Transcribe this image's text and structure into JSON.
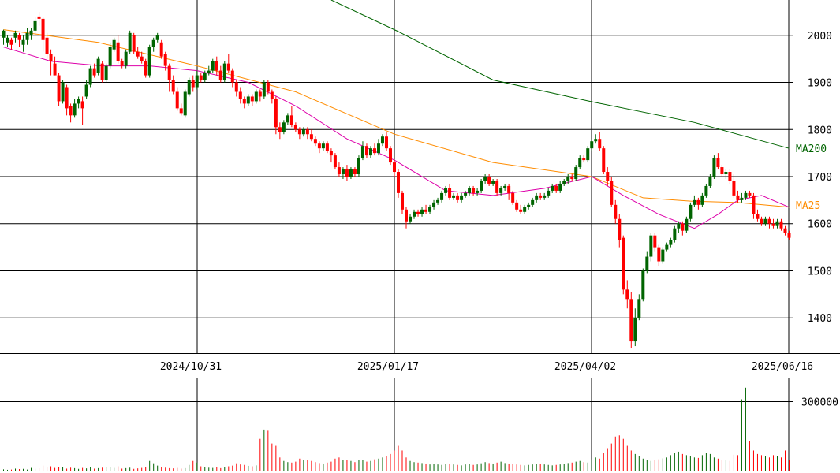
{
  "chart_data": {
    "type": "candlestick",
    "price_axis": {
      "ylim": [
        1325,
        2075
      ],
      "ticks": [
        1400,
        1500,
        1600,
        1700,
        1800,
        1900,
        2000
      ],
      "tick_labels": [
        "1400",
        "1500",
        "1600",
        "1700",
        "1800",
        "1900",
        "2000"
      ]
    },
    "date_axis": {
      "labels": [
        "2024/10/31",
        "2025/01/17",
        "2025/04/02",
        "2025/06/16"
      ],
      "label_index": [
        49,
        99,
        149,
        199
      ]
    },
    "volume_axis": {
      "ylim": [
        0,
        400000
      ],
      "ticks": [
        300000
      ],
      "tick_labels": [
        "300000"
      ]
    },
    "ma_labels": [
      {
        "text": "MA200",
        "color": "#006400"
      },
      {
        "text": "MA25",
        "color": "#ff8c00"
      }
    ],
    "colors": {
      "up": "#006400",
      "down": "#ff0000",
      "ma200": "#006400",
      "ma25": "#ff8c00",
      "ma_short": "#dd00aa",
      "grid": "#000000"
    },
    "ma200": [
      [
        83,
        2075
      ],
      [
        100,
        2008
      ],
      [
        124,
        1905
      ],
      [
        149,
        1859
      ],
      [
        175,
        1815
      ],
      [
        199,
        1760
      ]
    ],
    "ma25": [
      [
        0,
        2012
      ],
      [
        24,
        1985
      ],
      [
        49,
        1935
      ],
      [
        74,
        1880
      ],
      [
        99,
        1790
      ],
      [
        124,
        1730
      ],
      [
        149,
        1700
      ],
      [
        162,
        1655
      ],
      [
        174,
        1648
      ],
      [
        186,
        1645
      ],
      [
        199,
        1635
      ]
    ],
    "ma_short": [
      [
        0,
        1975
      ],
      [
        12,
        1945
      ],
      [
        25,
        1935
      ],
      [
        37,
        1935
      ],
      [
        49,
        1925
      ],
      [
        62,
        1900
      ],
      [
        74,
        1850
      ],
      [
        87,
        1780
      ],
      [
        99,
        1735
      ],
      [
        112,
        1670
      ],
      [
        124,
        1660
      ],
      [
        137,
        1675
      ],
      [
        149,
        1700
      ],
      [
        157,
        1660
      ],
      [
        166,
        1620
      ],
      [
        175,
        1590
      ],
      [
        181,
        1620
      ],
      [
        186,
        1650
      ],
      [
        192,
        1660
      ],
      [
        199,
        1635
      ]
    ],
    "candles": [
      [
        1995,
        2010,
        2012,
        1980
      ],
      [
        1985,
        1995,
        2000,
        1975
      ],
      [
        1990,
        1980,
        1995,
        1970
      ],
      [
        1995,
        2005,
        2010,
        1985
      ],
      [
        2000,
        1990,
        2005,
        1975
      ],
      [
        1980,
        1990,
        2000,
        1965
      ],
      [
        1990,
        2005,
        2015,
        1980
      ],
      [
        2000,
        2010,
        2015,
        1990
      ],
      [
        2010,
        2030,
        2040,
        2000
      ],
      [
        2040,
        2035,
        2050,
        2020
      ],
      [
        2035,
        1990,
        2040,
        1965
      ],
      [
        1995,
        1960,
        2005,
        1950
      ],
      [
        1960,
        1945,
        1970,
        1915
      ],
      [
        1940,
        1915,
        1955,
        1915
      ],
      [
        1915,
        1860,
        1920,
        1850
      ],
      [
        1860,
        1900,
        1905,
        1855
      ],
      [
        1890,
        1845,
        1895,
        1830
      ],
      [
        1850,
        1830,
        1855,
        1815
      ],
      [
        1830,
        1855,
        1865,
        1825
      ],
      [
        1855,
        1865,
        1870,
        1845
      ],
      [
        1860,
        1845,
        1870,
        1810
      ],
      [
        1870,
        1895,
        1905,
        1865
      ],
      [
        1895,
        1930,
        1935,
        1890
      ],
      [
        1930,
        1915,
        1940,
        1910
      ],
      [
        1920,
        1950,
        1955,
        1915
      ],
      [
        1940,
        1905,
        1945,
        1900
      ],
      [
        1905,
        1935,
        1940,
        1900
      ],
      [
        1935,
        1975,
        1985,
        1930
      ],
      [
        1970,
        1990,
        1995,
        1965
      ],
      [
        1985,
        1945,
        2000,
        1940
      ],
      [
        1945,
        1935,
        1950,
        1930
      ],
      [
        1935,
        1965,
        1970,
        1930
      ],
      [
        1965,
        2005,
        2010,
        1960
      ],
      [
        2000,
        1965,
        2005,
        1960
      ],
      [
        1965,
        1955,
        1975,
        1950
      ],
      [
        1955,
        1945,
        1965,
        1940
      ],
      [
        1945,
        1915,
        1950,
        1910
      ],
      [
        1915,
        1975,
        1980,
        1910
      ],
      [
        1975,
        1990,
        1995,
        1965
      ],
      [
        1990,
        2000,
        2005,
        1985
      ],
      [
        1985,
        1955,
        1990,
        1950
      ],
      [
        1960,
        1935,
        1965,
        1925
      ],
      [
        1935,
        1905,
        1940,
        1880
      ],
      [
        1905,
        1880,
        1915,
        1875
      ],
      [
        1880,
        1845,
        1890,
        1840
      ],
      [
        1845,
        1835,
        1855,
        1830
      ],
      [
        1830,
        1880,
        1885,
        1825
      ],
      [
        1875,
        1905,
        1910,
        1870
      ],
      [
        1905,
        1890,
        1915,
        1880
      ],
      [
        1890,
        1915,
        1925,
        1885
      ],
      [
        1915,
        1905,
        1920,
        1900
      ],
      [
        1905,
        1920,
        1925,
        1900
      ],
      [
        1920,
        1925,
        1935,
        1915
      ],
      [
        1925,
        1945,
        1950,
        1920
      ],
      [
        1945,
        1925,
        1955,
        1915
      ],
      [
        1925,
        1905,
        1935,
        1900
      ],
      [
        1905,
        1940,
        1945,
        1900
      ],
      [
        1940,
        1925,
        1960,
        1920
      ],
      [
        1925,
        1900,
        1930,
        1890
      ],
      [
        1900,
        1880,
        1905,
        1870
      ],
      [
        1880,
        1865,
        1890,
        1855
      ],
      [
        1865,
        1855,
        1870,
        1845
      ],
      [
        1855,
        1870,
        1875,
        1850
      ],
      [
        1870,
        1860,
        1875,
        1850
      ],
      [
        1860,
        1880,
        1885,
        1855
      ],
      [
        1880,
        1870,
        1885,
        1860
      ],
      [
        1870,
        1900,
        1905,
        1865
      ],
      [
        1900,
        1880,
        1905,
        1875
      ],
      [
        1880,
        1865,
        1885,
        1855
      ],
      [
        1865,
        1805,
        1870,
        1790
      ],
      [
        1805,
        1795,
        1815,
        1780
      ],
      [
        1795,
        1815,
        1820,
        1790
      ],
      [
        1815,
        1830,
        1835,
        1810
      ],
      [
        1830,
        1810,
        1850,
        1805
      ],
      [
        1810,
        1800,
        1815,
        1795
      ],
      [
        1800,
        1790,
        1805,
        1780
      ],
      [
        1790,
        1800,
        1805,
        1785
      ],
      [
        1800,
        1790,
        1805,
        1780
      ],
      [
        1790,
        1780,
        1800,
        1775
      ],
      [
        1780,
        1770,
        1785,
        1765
      ],
      [
        1770,
        1760,
        1775,
        1750
      ],
      [
        1760,
        1770,
        1775,
        1755
      ],
      [
        1770,
        1755,
        1775,
        1750
      ],
      [
        1755,
        1745,
        1760,
        1730
      ],
      [
        1745,
        1720,
        1750,
        1715
      ],
      [
        1720,
        1705,
        1730,
        1700
      ],
      [
        1705,
        1715,
        1720,
        1695
      ],
      [
        1715,
        1700,
        1725,
        1690
      ],
      [
        1700,
        1715,
        1720,
        1695
      ],
      [
        1715,
        1705,
        1720,
        1700
      ],
      [
        1705,
        1740,
        1745,
        1700
      ],
      [
        1740,
        1765,
        1775,
        1735
      ],
      [
        1765,
        1745,
        1770,
        1740
      ],
      [
        1745,
        1760,
        1765,
        1740
      ],
      [
        1760,
        1750,
        1770,
        1745
      ],
      [
        1750,
        1770,
        1780,
        1745
      ],
      [
        1770,
        1785,
        1790,
        1765
      ],
      [
        1785,
        1760,
        1795,
        1755
      ],
      [
        1760,
        1730,
        1765,
        1725
      ],
      [
        1730,
        1710,
        1735,
        1700
      ],
      [
        1710,
        1665,
        1715,
        1655
      ],
      [
        1665,
        1630,
        1670,
        1620
      ],
      [
        1630,
        1605,
        1635,
        1590
      ],
      [
        1605,
        1615,
        1620,
        1600
      ],
      [
        1615,
        1625,
        1630,
        1610
      ],
      [
        1625,
        1620,
        1630,
        1615
      ],
      [
        1620,
        1630,
        1635,
        1615
      ],
      [
        1630,
        1625,
        1640,
        1620
      ],
      [
        1625,
        1635,
        1640,
        1620
      ],
      [
        1635,
        1645,
        1650,
        1630
      ],
      [
        1645,
        1650,
        1655,
        1640
      ],
      [
        1650,
        1665,
        1670,
        1645
      ],
      [
        1665,
        1675,
        1680,
        1660
      ],
      [
        1675,
        1655,
        1685,
        1650
      ],
      [
        1655,
        1660,
        1665,
        1650
      ],
      [
        1660,
        1650,
        1665,
        1645
      ],
      [
        1650,
        1660,
        1665,
        1645
      ],
      [
        1660,
        1665,
        1670,
        1655
      ],
      [
        1665,
        1675,
        1680,
        1660
      ],
      [
        1675,
        1665,
        1680,
        1660
      ],
      [
        1665,
        1670,
        1675,
        1660
      ],
      [
        1670,
        1690,
        1695,
        1665
      ],
      [
        1690,
        1700,
        1705,
        1685
      ],
      [
        1700,
        1685,
        1705,
        1680
      ],
      [
        1685,
        1690,
        1695,
        1680
      ],
      [
        1690,
        1665,
        1695,
        1660
      ],
      [
        1665,
        1675,
        1680,
        1660
      ],
      [
        1675,
        1680,
        1685,
        1670
      ],
      [
        1680,
        1665,
        1685,
        1650
      ],
      [
        1665,
        1645,
        1670,
        1640
      ],
      [
        1645,
        1630,
        1650,
        1625
      ],
      [
        1630,
        1625,
        1640,
        1620
      ],
      [
        1625,
        1635,
        1640,
        1620
      ],
      [
        1635,
        1640,
        1645,
        1630
      ],
      [
        1640,
        1650,
        1655,
        1635
      ],
      [
        1650,
        1660,
        1665,
        1645
      ],
      [
        1660,
        1655,
        1665,
        1650
      ],
      [
        1655,
        1660,
        1665,
        1650
      ],
      [
        1660,
        1670,
        1675,
        1655
      ],
      [
        1670,
        1680,
        1685,
        1665
      ],
      [
        1680,
        1670,
        1685,
        1665
      ],
      [
        1670,
        1685,
        1690,
        1665
      ],
      [
        1685,
        1690,
        1695,
        1680
      ],
      [
        1690,
        1700,
        1705,
        1685
      ],
      [
        1700,
        1695,
        1705,
        1690
      ],
      [
        1695,
        1720,
        1725,
        1690
      ],
      [
        1720,
        1740,
        1745,
        1715
      ],
      [
        1740,
        1735,
        1745,
        1730
      ],
      [
        1735,
        1760,
        1765,
        1730
      ],
      [
        1760,
        1775,
        1780,
        1755
      ],
      [
        1775,
        1780,
        1790,
        1770
      ],
      [
        1780,
        1760,
        1795,
        1755
      ],
      [
        1760,
        1710,
        1765,
        1705
      ],
      [
        1710,
        1690,
        1720,
        1680
      ],
      [
        1690,
        1640,
        1700,
        1635
      ],
      [
        1640,
        1610,
        1650,
        1600
      ],
      [
        1610,
        1565,
        1620,
        1550
      ],
      [
        1570,
        1460,
        1575,
        1450
      ],
      [
        1460,
        1440,
        1480,
        1420
      ],
      [
        1440,
        1350,
        1455,
        1335
      ],
      [
        1350,
        1400,
        1420,
        1340
      ],
      [
        1400,
        1440,
        1450,
        1395
      ],
      [
        1440,
        1500,
        1505,
        1435
      ],
      [
        1500,
        1530,
        1540,
        1495
      ],
      [
        1530,
        1575,
        1580,
        1520
      ],
      [
        1575,
        1550,
        1580,
        1540
      ],
      [
        1550,
        1520,
        1555,
        1510
      ],
      [
        1520,
        1545,
        1550,
        1515
      ],
      [
        1545,
        1555,
        1560,
        1540
      ],
      [
        1555,
        1565,
        1570,
        1550
      ],
      [
        1565,
        1590,
        1595,
        1560
      ],
      [
        1590,
        1600,
        1605,
        1580
      ],
      [
        1600,
        1585,
        1605,
        1575
      ],
      [
        1585,
        1610,
        1615,
        1580
      ],
      [
        1610,
        1640,
        1645,
        1605
      ],
      [
        1640,
        1650,
        1660,
        1635
      ],
      [
        1650,
        1640,
        1655,
        1630
      ],
      [
        1640,
        1660,
        1665,
        1635
      ],
      [
        1660,
        1680,
        1685,
        1655
      ],
      [
        1680,
        1700,
        1705,
        1675
      ],
      [
        1700,
        1740,
        1745,
        1695
      ],
      [
        1740,
        1720,
        1750,
        1715
      ],
      [
        1720,
        1705,
        1725,
        1700
      ],
      [
        1705,
        1710,
        1715,
        1695
      ],
      [
        1710,
        1690,
        1715,
        1685
      ],
      [
        1690,
        1660,
        1705,
        1655
      ],
      [
        1660,
        1650,
        1670,
        1645
      ],
      [
        1650,
        1655,
        1665,
        1645
      ],
      [
        1655,
        1665,
        1670,
        1650
      ],
      [
        1665,
        1660,
        1670,
        1655
      ],
      [
        1660,
        1620,
        1665,
        1610
      ],
      [
        1620,
        1610,
        1630,
        1605
      ],
      [
        1610,
        1600,
        1615,
        1595
      ],
      [
        1600,
        1610,
        1615,
        1595
      ],
      [
        1610,
        1600,
        1615,
        1590
      ],
      [
        1600,
        1595,
        1610,
        1590
      ],
      [
        1595,
        1605,
        1610,
        1590
      ],
      [
        1605,
        1590,
        1610,
        1585
      ],
      [
        1590,
        1580,
        1595,
        1575
      ],
      [
        1580,
        1570,
        1585,
        1565
      ]
    ],
    "volume": [
      9000,
      7000,
      8000,
      12000,
      10000,
      11000,
      8000,
      15000,
      12000,
      14000,
      25000,
      18000,
      22000,
      15000,
      20000,
      18000,
      12000,
      16000,
      14000,
      11000,
      15000,
      13000,
      17000,
      12000,
      14000,
      16000,
      20000,
      18000,
      15000,
      22000,
      12000,
      14000,
      16000,
      11000,
      13000,
      15000,
      17000,
      45000,
      35000,
      25000,
      18000,
      16000,
      14000,
      13000,
      15000,
      12000,
      14000,
      28000,
      45000,
      38000,
      22000,
      18000,
      16000,
      15000,
      17000,
      14000,
      20000,
      22000,
      25000,
      35000,
      30000,
      28000,
      24000,
      22000,
      26000,
      140000,
      180000,
      175000,
      120000,
      110000,
      60000,
      45000,
      40000,
      38000,
      42000,
      55000,
      50000,
      48000,
      45000,
      40000,
      36000,
      34000,
      38000,
      42000,
      55000,
      60000,
      50000,
      48000,
      45000,
      40000,
      50000,
      48000,
      42000,
      45000,
      52000,
      55000,
      60000,
      65000,
      75000,
      90000,
      110000,
      90000,
      60000,
      45000,
      40000,
      38000,
      36000,
      34000,
      30000,
      32000,
      30000,
      28000,
      32000,
      34000,
      30000,
      28000,
      26000,
      30000,
      32000,
      28000,
      30000,
      35000,
      40000,
      36000,
      34000,
      38000,
      42000,
      36000,
      34000,
      32000,
      30000,
      28000,
      26000,
      28000,
      30000,
      32000,
      34000,
      30000,
      28000,
      26000,
      28000,
      30000,
      32000,
      36000,
      38000,
      42000,
      45000,
      40000,
      38000,
      52000,
      60000,
      55000,
      80000,
      100000,
      120000,
      150000,
      155000,
      140000,
      110000,
      90000,
      75000,
      65000,
      55000,
      50000,
      45000,
      48000,
      52000,
      56000,
      60000,
      70000,
      80000,
      85000,
      75000,
      70000,
      65000,
      60000,
      58000,
      70000,
      80000,
      75000,
      60000,
      55000,
      50000,
      48000,
      45000,
      72000,
      70000,
      310000,
      360000,
      130000,
      90000,
      75000,
      70000,
      65000,
      60000,
      70000,
      65000,
      60000,
      90000,
      50000
    ]
  }
}
